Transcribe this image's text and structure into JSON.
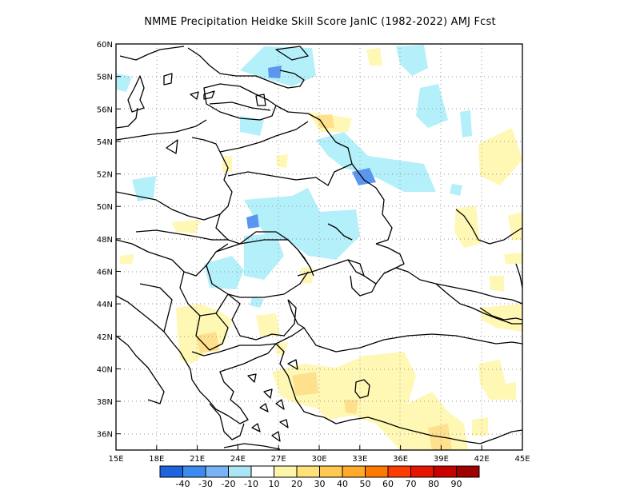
{
  "title": "NMME  Precipitation Heidke Skill Score JanIC (1982-2022) AMJ Fcst",
  "map": {
    "lon_range": [
      15,
      45
    ],
    "lat_range": [
      35,
      60
    ],
    "lon_ticks": [
      "15E",
      "18E",
      "21E",
      "24E",
      "27E",
      "30E",
      "33E",
      "36E",
      "39E",
      "42E",
      "45E"
    ],
    "lat_ticks": [
      "36N",
      "38N",
      "40N",
      "42N",
      "44N",
      "46N",
      "48N",
      "50N",
      "52N",
      "54N",
      "56N",
      "58N",
      "60N"
    ],
    "grid": "dotted"
  },
  "colorbar": {
    "labels": [
      "-40",
      "-30",
      "-20",
      "-10",
      "10",
      "20",
      "30",
      "40",
      "50",
      "60",
      "70",
      "80",
      "90"
    ],
    "colors": [
      "#1e64dc",
      "#3c8cf0",
      "#78b4f5",
      "#aae6f5",
      "#ffffff",
      "#fff5aa",
      "#ffe178",
      "#ffc850",
      "#ffaa28",
      "#ff7800",
      "#ff3c00",
      "#e61400",
      "#c80000",
      "#a00000"
    ]
  },
  "shading": {
    "colors": {
      "light_blue": "#b4f0fa",
      "blue": "#5a96f0",
      "light_yellow": "#fff7b4",
      "yellow": "#ffe08c"
    }
  }
}
